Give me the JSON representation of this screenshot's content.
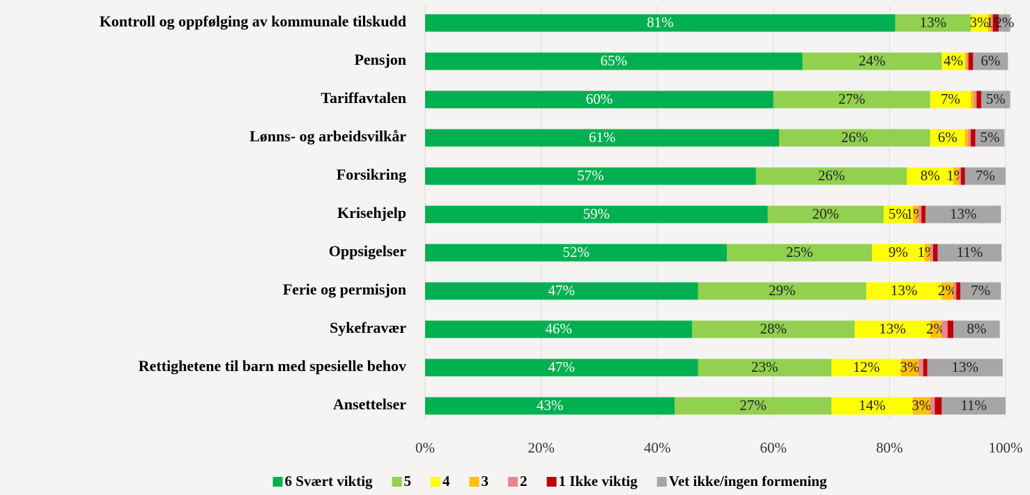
{
  "chart_data": {
    "type": "stacked_bar_horizontal",
    "categories": [
      "Kontroll og oppfølging av kommunale tilskudd",
      "Pensjon",
      "Tariffavtalen",
      "Lønns- og arbeidsvilkår",
      "Forsikring",
      "Krisehjelp",
      "Oppsigelser",
      "Ferie og permisjon",
      "Sykefravær",
      "Rettighetene til barn med spesielle behov",
      "Ansettelser"
    ],
    "series": [
      {
        "name": "6 Svært viktig",
        "color": "#00b050",
        "values": [
          81,
          65,
          60,
          61,
          57,
          59,
          52,
          47,
          46,
          47,
          43
        ],
        "value_labels": [
          "81%",
          "65%",
          "60%",
          "61%",
          "57%",
          "59%",
          "52%",
          "47%",
          "46%",
          "47%",
          "43%"
        ]
      },
      {
        "name": "5",
        "color": "#92d050",
        "values": [
          13,
          24,
          27,
          26,
          26,
          20,
          25,
          29,
          28,
          23,
          27
        ],
        "value_labels": [
          "13%",
          "24%",
          "27%",
          "26%",
          "26%",
          "20%",
          "25%",
          "29%",
          "28%",
          "23%",
          "27%"
        ]
      },
      {
        "name": "4",
        "color": "#ffff00",
        "values": [
          3,
          4,
          7,
          6,
          8,
          5,
          9,
          13,
          13,
          12,
          14
        ],
        "value_labels": [
          "3%",
          "4%",
          "7%",
          "6%",
          "8%",
          "5%",
          "9%",
          "13%",
          "13%",
          "12%",
          "14%"
        ]
      },
      {
        "name": "3",
        "color": "#ffc000",
        "values": [
          0.5,
          0.3,
          0.5,
          0.5,
          1,
          1,
          1,
          2,
          2,
          3,
          3
        ],
        "value_labels": [
          null,
          null,
          null,
          null,
          "1%",
          "1%",
          "1%",
          "2%",
          "2%",
          "3%",
          "3%"
        ]
      },
      {
        "name": "2",
        "color": "#e8868f",
        "values": [
          0.3,
          0.3,
          0.5,
          0.5,
          0.3,
          0.5,
          0.5,
          0.5,
          1,
          0.8,
          0.8
        ],
        "value_labels": [
          null,
          null,
          null,
          null,
          null,
          null,
          null,
          null,
          null,
          null,
          null
        ]
      },
      {
        "name": "1 Ikke viktig",
        "color": "#c00000",
        "values": [
          1,
          0.8,
          0.8,
          0.8,
          0.7,
          0.7,
          0.8,
          0.7,
          1,
          0.7,
          1.2
        ],
        "value_labels": [
          "1%",
          null,
          null,
          null,
          null,
          null,
          null,
          null,
          null,
          null,
          null
        ]
      },
      {
        "name": "Vet ikke/ingen formening",
        "color": "#a6a6a6",
        "values": [
          2,
          6,
          5,
          5,
          7,
          13,
          11,
          7,
          8,
          13,
          11
        ],
        "value_labels": [
          "2%",
          "6%",
          "5%",
          "5%",
          "7%",
          "13%",
          "11%",
          "7%",
          "8%",
          "13%",
          "11%"
        ]
      }
    ],
    "xlim": [
      0,
      100
    ],
    "xticks": [
      {
        "value": 0,
        "label": "0%"
      },
      {
        "value": 20,
        "label": "20%"
      },
      {
        "value": 40,
        "label": "40%"
      },
      {
        "value": 60,
        "label": "60%"
      },
      {
        "value": 80,
        "label": "80%"
      },
      {
        "value": 100,
        "label": "100%"
      }
    ],
    "grid": true,
    "legend": "bottom"
  }
}
